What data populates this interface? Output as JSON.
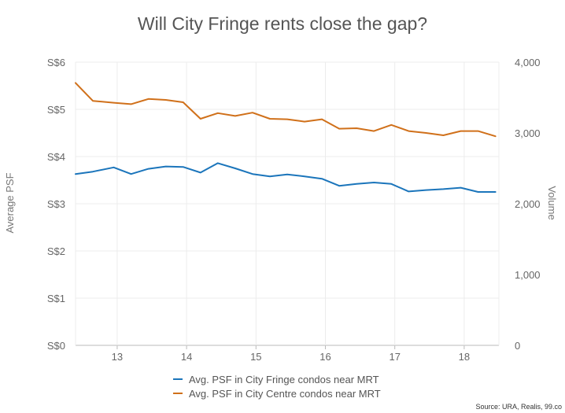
{
  "chart_data": {
    "type": "line",
    "title": "Will City Fringe rents close the gap?",
    "ylabel": "Average PSF",
    "y2label": "Volume",
    "ylim": [
      0,
      6
    ],
    "y2lim": [
      0,
      4000
    ],
    "xlim": [
      12.4,
      18.5
    ],
    "yticks": [
      "S$0",
      "S$1",
      "S$2",
      "S$3",
      "S$4",
      "S$5",
      "S$6"
    ],
    "y2ticks": [
      "0",
      "1,000",
      "2,000",
      "3,000",
      "4,000"
    ],
    "xticks": [
      "13",
      "14",
      "15",
      "16",
      "17",
      "18"
    ],
    "grid": true,
    "legend_position": "bottom",
    "source": "Source: URA, Realis, 99.co",
    "series": [
      {
        "name": "Avg. PSF in City Fringe condos near MRT",
        "color": "#1b75bb",
        "x": [
          12.4,
          12.65,
          12.95,
          13.2,
          13.45,
          13.7,
          13.95,
          14.2,
          14.45,
          14.7,
          14.95,
          15.2,
          15.45,
          15.7,
          15.95,
          16.2,
          16.45,
          16.7,
          16.95,
          17.2,
          17.45,
          17.7,
          17.95,
          18.2,
          18.45
        ],
        "values": [
          3.63,
          3.68,
          3.77,
          3.63,
          3.74,
          3.79,
          3.78,
          3.66,
          3.86,
          3.75,
          3.63,
          3.58,
          3.62,
          3.58,
          3.53,
          3.38,
          3.42,
          3.45,
          3.42,
          3.26,
          3.29,
          3.31,
          3.34,
          3.25,
          3.25
        ]
      },
      {
        "name": "Avg. PSF in City Centre condos near MRT",
        "color": "#d0701a",
        "x": [
          12.4,
          12.65,
          12.95,
          13.2,
          13.45,
          13.7,
          13.95,
          14.2,
          14.45,
          14.7,
          14.95,
          15.2,
          15.45,
          15.7,
          15.95,
          16.2,
          16.45,
          16.7,
          16.95,
          17.2,
          17.45,
          17.7,
          17.95,
          18.2,
          18.45
        ],
        "values": [
          5.56,
          5.18,
          5.14,
          5.11,
          5.22,
          5.2,
          5.15,
          4.8,
          4.92,
          4.86,
          4.93,
          4.8,
          4.79,
          4.74,
          4.79,
          4.59,
          4.6,
          4.54,
          4.67,
          4.54,
          4.5,
          4.45,
          4.54,
          4.54,
          4.43
        ]
      }
    ]
  }
}
